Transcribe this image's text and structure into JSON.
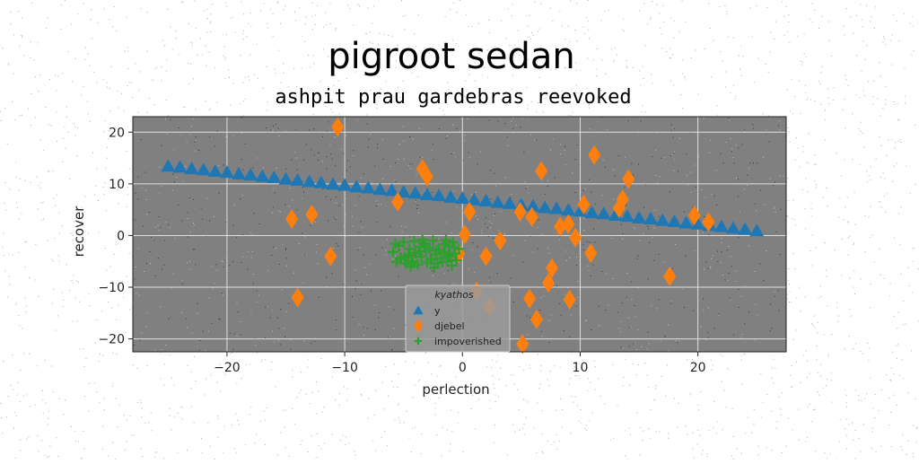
{
  "chart_data": {
    "type": "scatter",
    "title": "pigroot sedan",
    "subtitle": "ashpit prau gardebras reevoked",
    "xlabel": "perlection",
    "ylabel": "recover",
    "xlim": [
      -28,
      27.5
    ],
    "ylim": [
      -22.5,
      23
    ],
    "xticks": [
      -20,
      -10,
      0,
      10,
      20
    ],
    "yticks": [
      -20,
      -10,
      0,
      10,
      20
    ],
    "grid": true,
    "background": "#808080",
    "legend": {
      "title": "kyathos",
      "placement": "lower-center"
    },
    "series": [
      {
        "name": "y",
        "marker": "triangle",
        "color": "#1f77b4",
        "x": [
          -25.0,
          -24.0,
          -23.0,
          -22.0,
          -21.0,
          -20.0,
          -19.0,
          -18.0,
          -17.0,
          -16.0,
          -15.0,
          -14.0,
          -13.0,
          -12.0,
          -11.0,
          -10.0,
          -9.0,
          -8.0,
          -7.0,
          -6.0,
          -5.0,
          -4.0,
          -3.0,
          -2.0,
          -1.0,
          0.0,
          1.0,
          2.0,
          3.0,
          4.0,
          5.0,
          6.0,
          7.0,
          8.0,
          9.0,
          10.0,
          11.0,
          12.0,
          13.0,
          14.0,
          15.0,
          16.0,
          17.0,
          18.0,
          19.0,
          20.0,
          21.0,
          22.0,
          23.0,
          24.0,
          25.0
        ],
        "y": [
          13.4,
          13.2,
          12.9,
          12.7,
          12.4,
          12.2,
          11.9,
          11.7,
          11.4,
          11.2,
          10.9,
          10.7,
          10.4,
          10.2,
          9.9,
          9.7,
          9.4,
          9.2,
          8.9,
          8.7,
          8.4,
          8.2,
          7.9,
          7.7,
          7.4,
          7.2,
          6.9,
          6.7,
          6.4,
          6.2,
          5.9,
          5.7,
          5.4,
          5.2,
          4.9,
          4.7,
          4.4,
          4.2,
          3.9,
          3.7,
          3.4,
          3.2,
          2.9,
          2.7,
          2.4,
          2.2,
          1.9,
          1.7,
          1.4,
          1.2,
          0.9
        ]
      },
      {
        "name": "djebel",
        "marker": "thin_diamond",
        "color": "#ff7f0e",
        "x": [
          -14.5,
          -14.0,
          -12.8,
          -11.2,
          -10.6,
          -5.5,
          -3.4,
          -3.0,
          -0.3,
          0.2,
          0.6,
          1.2,
          2.0,
          2.3,
          3.2,
          4.9,
          5.1,
          5.7,
          5.9,
          6.3,
          6.7,
          7.3,
          7.6,
          8.3,
          9.0,
          9.1,
          9.6,
          10.3,
          10.9,
          11.2,
          13.3,
          13.6,
          14.1,
          17.6,
          19.7,
          20.9
        ],
        "y": [
          3.2,
          -12.0,
          4.1,
          -4.0,
          21.0,
          6.5,
          12.9,
          11.4,
          -3.5,
          0.2,
          4.6,
          -10.8,
          -4.0,
          -13.9,
          -1.0,
          4.6,
          -21.0,
          -12.2,
          3.6,
          -16.2,
          12.5,
          -9.2,
          -6.3,
          1.7,
          2.2,
          -12.4,
          -0.4,
          6.0,
          -3.4,
          15.6,
          5.3,
          7.0,
          10.9,
          -7.9,
          3.9,
          2.6
        ]
      },
      {
        "name": "impoverished",
        "marker": "plus",
        "color": "#2ca02c",
        "x": [
          -5.9,
          -5.6,
          -5.4,
          -5.2,
          -5.0,
          -4.8,
          -4.6,
          -4.5,
          -4.3,
          -4.1,
          -4.0,
          -3.8,
          -3.6,
          -3.5,
          -3.3,
          -3.1,
          -3.0,
          -2.8,
          -2.6,
          -2.5,
          -2.3,
          -2.1,
          -2.0,
          -1.8,
          -1.6,
          -1.5,
          -1.3,
          -1.1,
          -1.0,
          -0.8,
          -0.6,
          -0.5,
          -0.3,
          -5.7,
          -4.9,
          -4.2,
          -3.7,
          -3.2,
          -2.7,
          -2.2,
          -1.7,
          -1.2,
          -0.7,
          -4.4,
          -3.4,
          -2.4,
          -1.4,
          -5.3,
          -0.9
        ],
        "y": [
          -3.2,
          -5.1,
          -2.0,
          -4.3,
          -1.3,
          -5.5,
          -3.8,
          -2.6,
          -4.9,
          -1.1,
          -3.4,
          -5.6,
          -2.2,
          -4.1,
          -1.5,
          -3.0,
          -5.2,
          -2.4,
          -4.6,
          -1.0,
          -3.6,
          -5.4,
          -2.8,
          -4.4,
          -1.7,
          -3.3,
          -5.0,
          -2.1,
          -4.0,
          -1.3,
          -3.5,
          -4.8,
          -2.6,
          -1.6,
          -4.2,
          -5.3,
          -3.1,
          -1.9,
          -4.7,
          -2.9,
          -5.1,
          -3.7,
          -2.3,
          -6.0,
          -0.8,
          -6.2,
          -0.9,
          -4.5,
          -5.8
        ]
      }
    ]
  }
}
